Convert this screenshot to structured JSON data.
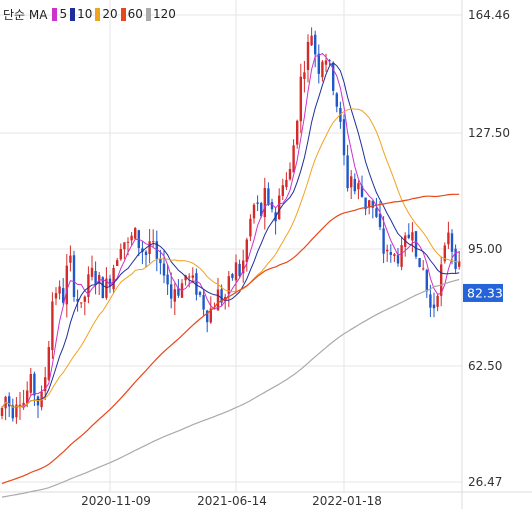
{
  "chart_data": {
    "type": "candlestick",
    "legend": {
      "title": "단순 MA",
      "items": [
        {
          "label": "5",
          "color": "#cc33cc"
        },
        {
          "label": "10",
          "color": "#1f2f99"
        },
        {
          "label": "20",
          "color": "#f0a321"
        },
        {
          "label": "60",
          "color": "#e8471a"
        },
        {
          "label": "120",
          "color": "#aaaaaa"
        }
      ]
    },
    "y_ticks": [
      "164.46",
      "127.50",
      "95.00",
      "62.50",
      "26.47"
    ],
    "x_ticks": [
      "2020-11-09",
      "2021-06-14",
      "2022-01-18"
    ],
    "last_price": "82.33",
    "last_price_value": 82.33,
    "y_range": [
      26.47,
      164.46
    ],
    "grid": true,
    "colors": {
      "up": "#d42a2a",
      "down": "#1f58c9",
      "last_label_bg": "#2563d9",
      "grid": "#e6e6e6"
    },
    "price_points": [
      [
        0,
        46
      ],
      [
        6,
        52
      ],
      [
        12,
        47
      ],
      [
        18,
        53
      ],
      [
        24,
        50
      ],
      [
        30,
        56
      ],
      [
        36,
        52
      ],
      [
        40,
        48
      ],
      [
        44,
        55
      ],
      [
        48,
        65
      ],
      [
        52,
        80
      ],
      [
        58,
        85
      ],
      [
        62,
        78
      ],
      [
        66,
        88
      ],
      [
        70,
        92
      ],
      [
        74,
        84
      ],
      [
        78,
        80
      ],
      [
        82,
        76
      ],
      [
        86,
        84
      ],
      [
        92,
        88
      ],
      [
        98,
        86
      ],
      [
        104,
        83
      ],
      [
        110,
        87
      ],
      [
        116,
        93
      ],
      [
        122,
        99
      ],
      [
        128,
        96
      ],
      [
        134,
        100
      ],
      [
        140,
        96
      ],
      [
        146,
        94
      ],
      [
        150,
        98
      ],
      [
        156,
        92
      ],
      [
        160,
        88
      ],
      [
        164,
        90
      ],
      [
        168,
        85
      ],
      [
        172,
        80
      ],
      [
        176,
        86
      ],
      [
        180,
        82
      ],
      [
        184,
        88
      ],
      [
        190,
        86
      ],
      [
        196,
        84
      ],
      [
        202,
        80
      ],
      [
        208,
        76
      ],
      [
        212,
        78
      ],
      [
        218,
        82
      ],
      [
        224,
        80
      ],
      [
        228,
        84
      ],
      [
        232,
        87
      ],
      [
        236,
        90
      ],
      [
        240,
        88
      ],
      [
        244,
        92
      ],
      [
        248,
        100
      ],
      [
        252,
        106
      ],
      [
        256,
        110
      ],
      [
        260,
        103
      ],
      [
        264,
        112
      ],
      [
        268,
        106
      ],
      [
        272,
        108
      ],
      [
        276,
        104
      ],
      [
        280,
        112
      ],
      [
        284,
        118
      ],
      [
        288,
        114
      ],
      [
        292,
        122
      ],
      [
        296,
        132
      ],
      [
        300,
        144
      ],
      [
        304,
        150
      ],
      [
        308,
        155
      ],
      [
        312,
        160
      ],
      [
        316,
        152
      ],
      [
        320,
        148
      ],
      [
        324,
        155
      ],
      [
        328,
        150
      ],
      [
        332,
        146
      ],
      [
        336,
        140
      ],
      [
        340,
        132
      ],
      [
        344,
        122
      ],
      [
        348,
        114
      ],
      [
        352,
        118
      ],
      [
        356,
        110
      ],
      [
        360,
        116
      ],
      [
        364,
        106
      ],
      [
        368,
        112
      ],
      [
        372,
        108
      ],
      [
        376,
        104
      ],
      [
        380,
        100
      ],
      [
        384,
        94
      ],
      [
        388,
        96
      ],
      [
        392,
        90
      ],
      [
        396,
        95
      ],
      [
        400,
        92
      ],
      [
        404,
        96
      ],
      [
        408,
        98
      ],
      [
        412,
        104
      ],
      [
        416,
        96
      ],
      [
        420,
        86
      ],
      [
        424,
        90
      ],
      [
        428,
        80
      ],
      [
        432,
        76
      ],
      [
        436,
        82
      ],
      [
        440,
        88
      ],
      [
        444,
        92
      ],
      [
        448,
        102
      ],
      [
        452,
        96
      ],
      [
        456,
        92
      ],
      [
        460,
        88
      ],
      [
        462,
        82
      ]
    ]
  }
}
